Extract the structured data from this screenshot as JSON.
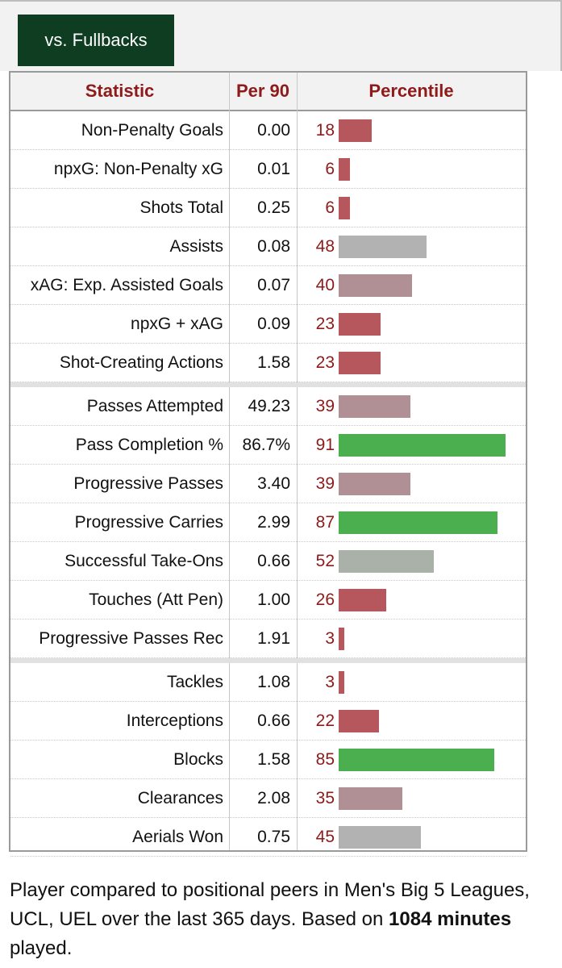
{
  "tab": {
    "label": "vs. Fullbacks"
  },
  "table": {
    "headers": {
      "statistic": "Statistic",
      "per90": "Per 90",
      "percentile": "Percentile"
    }
  },
  "chart_data": {
    "type": "bar",
    "orientation": "horizontal",
    "xlim": [
      0,
      100
    ],
    "groups": [
      {
        "rows": [
          {
            "stat": "Non-Penalty Goals",
            "per90": "0.00",
            "percentile": 18
          },
          {
            "stat": "npxG: Non-Penalty xG",
            "per90": "0.01",
            "percentile": 6
          },
          {
            "stat": "Shots Total",
            "per90": "0.25",
            "percentile": 6
          },
          {
            "stat": "Assists",
            "per90": "0.08",
            "percentile": 48
          },
          {
            "stat": "xAG: Exp. Assisted Goals",
            "per90": "0.07",
            "percentile": 40
          },
          {
            "stat": "npxG + xAG",
            "per90": "0.09",
            "percentile": 23
          },
          {
            "stat": "Shot-Creating Actions",
            "per90": "1.58",
            "percentile": 23
          }
        ]
      },
      {
        "rows": [
          {
            "stat": "Passes Attempted",
            "per90": "49.23",
            "percentile": 39
          },
          {
            "stat": "Pass Completion %",
            "per90": "86.7%",
            "percentile": 91
          },
          {
            "stat": "Progressive Passes",
            "per90": "3.40",
            "percentile": 39
          },
          {
            "stat": "Progressive Carries",
            "per90": "2.99",
            "percentile": 87
          },
          {
            "stat": "Successful Take-Ons",
            "per90": "0.66",
            "percentile": 52
          },
          {
            "stat": "Touches (Att Pen)",
            "per90": "1.00",
            "percentile": 26
          },
          {
            "stat": "Progressive Passes Rec",
            "per90": "1.91",
            "percentile": 3
          }
        ]
      },
      {
        "rows": [
          {
            "stat": "Tackles",
            "per90": "1.08",
            "percentile": 3
          },
          {
            "stat": "Interceptions",
            "per90": "0.66",
            "percentile": 22
          },
          {
            "stat": "Blocks",
            "per90": "1.58",
            "percentile": 85
          },
          {
            "stat": "Clearances",
            "per90": "2.08",
            "percentile": 35
          },
          {
            "stat": "Aerials Won",
            "per90": "0.75",
            "percentile": 45
          }
        ]
      }
    ],
    "colors": {
      "low": "#b5575d",
      "mid_low": "#b09095",
      "mid": "#b2b2b2",
      "mid_high": "#a9b1a9",
      "high": "#4bae4f"
    }
  },
  "caption": {
    "part1": "Player compared to positional peers in Men's Big 5 Leagues, UCL, UEL over the last 365 days. Based on ",
    "bold": "1084 minutes",
    "part2": " played."
  }
}
